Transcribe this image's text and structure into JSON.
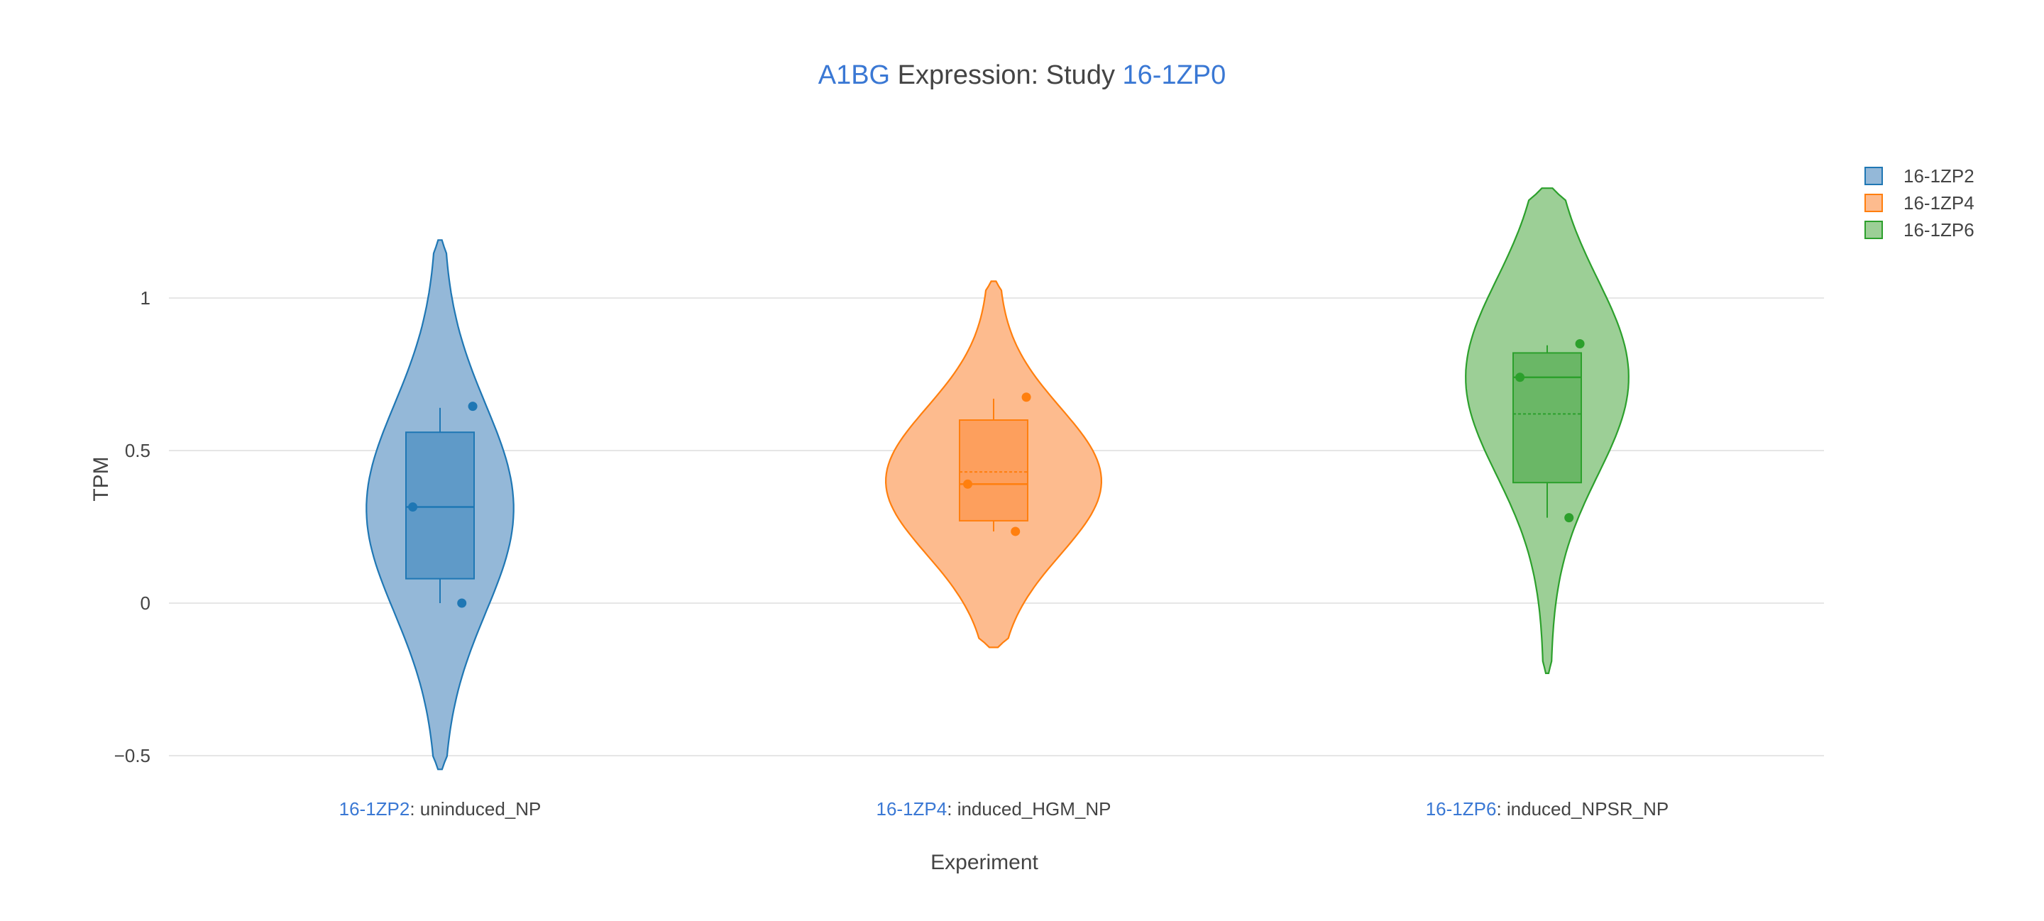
{
  "chart_data": {
    "type": "violin",
    "title": {
      "gene": "A1BG",
      "middle": " Expression: Study ",
      "study": "16-1ZP0"
    },
    "xlabel": "Experiment",
    "ylabel": "TPM",
    "ylim": [
      -0.52,
      1.6
    ],
    "y_ticks": [
      {
        "value": -0.5,
        "label": "−0.5"
      },
      {
        "value": 0,
        "label": "0"
      },
      {
        "value": 0.5,
        "label": "0.5"
      },
      {
        "value": 1,
        "label": "1"
      }
    ],
    "grid": true,
    "legend_position": "top-right",
    "series": [
      {
        "name": "16-1ZP2",
        "sample": "16-1ZP2",
        "condition": ": uninduced_NP",
        "color": "#1f77b4",
        "fill": "#94b8d8",
        "box_fill": "#5f9ac8",
        "violin_range": [
          -0.545,
          1.19
        ],
        "max_half_width": 0.28,
        "peak_value": 0.31,
        "spread": 0.34,
        "box": {
          "q1": 0.08,
          "median": 0.315,
          "q3": 0.56,
          "mean": 0.315,
          "whisker_low": 0.0,
          "whisker_high": 0.64
        },
        "points": [
          {
            "y": 0.645,
            "offset": 0.48
          },
          {
            "y": 0.315,
            "offset": -0.4
          },
          {
            "y": 0.0,
            "offset": 0.32
          }
        ]
      },
      {
        "name": "16-1ZP4",
        "sample": "16-1ZP4",
        "condition": ": induced_HGM_NP",
        "color": "#ff7f0e",
        "fill": "#fdbb8e",
        "box_fill": "#fd9f5d",
        "violin_range": [
          -0.145,
          1.055
        ],
        "max_half_width": 0.41,
        "peak_value": 0.4,
        "spread": 0.24,
        "box": {
          "q1": 0.27,
          "median": 0.39,
          "q3": 0.6,
          "mean": 0.43,
          "whisker_low": 0.235,
          "whisker_high": 0.67
        },
        "points": [
          {
            "y": 0.675,
            "offset": 0.48
          },
          {
            "y": 0.39,
            "offset": -0.38
          },
          {
            "y": 0.235,
            "offset": 0.32
          }
        ]
      },
      {
        "name": "16-1ZP6",
        "sample": "16-1ZP6",
        "condition": ": induced_NPSR_NP",
        "color": "#2ca02c",
        "fill": "#9ccf96",
        "box_fill": "#6ab766",
        "violin_range": [
          -0.23,
          1.36
        ],
        "max_half_width": 0.31,
        "peak_value": 0.74,
        "spread": 0.32,
        "box": {
          "q1": 0.395,
          "median": 0.74,
          "q3": 0.82,
          "mean": 0.62,
          "whisker_low": 0.28,
          "whisker_high": 0.845
        },
        "points": [
          {
            "y": 0.85,
            "offset": 0.48
          },
          {
            "y": 0.74,
            "offset": -0.4
          },
          {
            "y": 0.28,
            "offset": 0.32
          }
        ]
      }
    ]
  }
}
